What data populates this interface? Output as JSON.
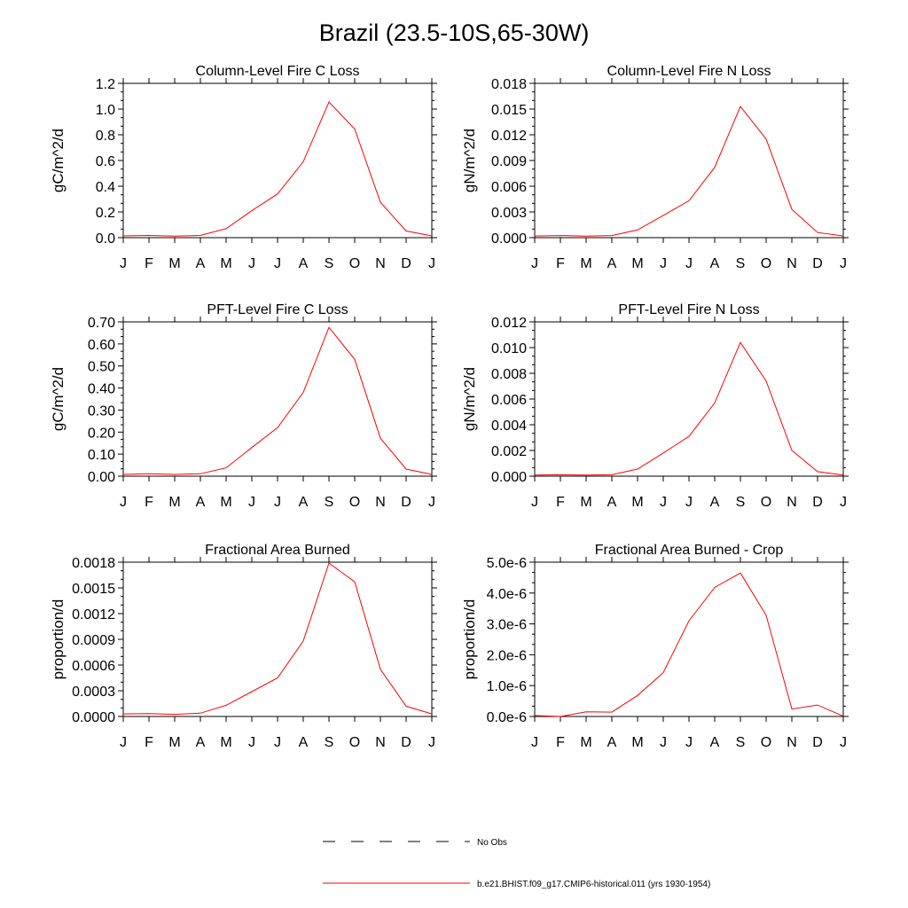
{
  "page_title": "Brazil (23.5-10S,65-30W)",
  "months": [
    "J",
    "F",
    "M",
    "A",
    "M",
    "J",
    "J",
    "A",
    "S",
    "O",
    "N",
    "D",
    "J"
  ],
  "colors": {
    "line": "#ff0000",
    "axis": "#000000",
    "obs": "#000000"
  },
  "legend": {
    "obs_label": "No Obs",
    "model_label": "b.e21.BHIST.f09_g17.CMIP6-historical.011 (yrs 1930-1954)"
  },
  "chart_data": [
    {
      "type": "line",
      "title": "Column-Level Fire C Loss",
      "ylabel": "gC/m^2/d",
      "ylim": [
        0,
        1.2
      ],
      "yticks": [
        "0.0",
        "0.2",
        "0.4",
        "0.6",
        "0.8",
        "1.0",
        "1.2"
      ],
      "categories": [
        "J",
        "F",
        "M",
        "A",
        "M",
        "J",
        "J",
        "A",
        "S",
        "O",
        "N",
        "D",
        "J"
      ],
      "values": [
        0.014,
        0.017,
        0.012,
        0.017,
        0.07,
        0.21,
        0.34,
        0.59,
        1.055,
        0.845,
        0.275,
        0.052,
        0.014
      ]
    },
    {
      "type": "line",
      "title": "Column-Level Fire N Loss",
      "ylabel": "gN/m^2/d",
      "ylim": [
        0,
        0.018
      ],
      "yticks": [
        "0.000",
        "0.003",
        "0.006",
        "0.009",
        "0.012",
        "0.015",
        "0.018"
      ],
      "categories": [
        "J",
        "F",
        "M",
        "A",
        "M",
        "J",
        "J",
        "A",
        "S",
        "O",
        "N",
        "D",
        "J"
      ],
      "values": [
        0.0002,
        0.00025,
        0.00018,
        0.00025,
        0.0009,
        0.0026,
        0.0043,
        0.0082,
        0.0153,
        0.0115,
        0.0033,
        0.0006,
        0.0002
      ]
    },
    {
      "type": "line",
      "title": "PFT-Level Fire C Loss",
      "ylabel": "gC/m^2/d",
      "ylim": [
        0,
        0.7
      ],
      "yticks": [
        "0.00",
        "0.10",
        "0.20",
        "0.30",
        "0.40",
        "0.50",
        "0.60",
        "0.70"
      ],
      "categories": [
        "J",
        "F",
        "M",
        "A",
        "M",
        "J",
        "J",
        "A",
        "S",
        "O",
        "N",
        "D",
        "J"
      ],
      "values": [
        0.008,
        0.011,
        0.008,
        0.011,
        0.038,
        0.13,
        0.22,
        0.38,
        0.675,
        0.53,
        0.172,
        0.032,
        0.008
      ]
    },
    {
      "type": "line",
      "title": "PFT-Level Fire N Loss",
      "ylabel": "gN/m^2/d",
      "ylim": [
        0,
        0.012
      ],
      "yticks": [
        "0.000",
        "0.002",
        "0.004",
        "0.006",
        "0.008",
        "0.010",
        "0.012"
      ],
      "categories": [
        "J",
        "F",
        "M",
        "A",
        "M",
        "J",
        "J",
        "A",
        "S",
        "O",
        "N",
        "D",
        "J"
      ],
      "values": [
        9e-05,
        0.00011,
        8e-05,
        0.00011,
        0.00055,
        0.0018,
        0.0031,
        0.0057,
        0.0104,
        0.0074,
        0.002,
        0.00035,
        9e-05
      ]
    },
    {
      "type": "line",
      "title": "Fractional Area Burned",
      "ylabel": "proportion/d",
      "ylim": [
        0,
        0.0018
      ],
      "yticks": [
        "0.0000",
        "0.0003",
        "0.0006",
        "0.0009",
        "0.0012",
        "0.0015",
        "0.0018"
      ],
      "categories": [
        "J",
        "F",
        "M",
        "A",
        "M",
        "J",
        "J",
        "A",
        "S",
        "O",
        "N",
        "D",
        "J"
      ],
      "values": [
        3e-05,
        3.3e-05,
        2.5e-05,
        3.8e-05,
        0.00013,
        0.00029,
        0.00045,
        0.00088,
        0.00179,
        0.00157,
        0.00055,
        0.00012,
        3e-05
      ]
    },
    {
      "type": "line",
      "title": "Fractional Area Burned - Crop",
      "ylabel": "proportion/d",
      "ylim": [
        0,
        5e-06
      ],
      "yticks": [
        "0.0e-6",
        "1.0e-6",
        "2.0e-6",
        "3.0e-6",
        "4.0e-6",
        "5.0e-6"
      ],
      "categories": [
        "J",
        "F",
        "M",
        "A",
        "M",
        "J",
        "J",
        "A",
        "S",
        "O",
        "N",
        "D",
        "J"
      ],
      "values": [
        3e-08,
        0.0,
        1.5e-07,
        1.4e-07,
        6.8e-07,
        1.42e-06,
        3.1e-06,
        4.18e-06,
        4.65e-06,
        3.28e-06,
        2.4e-07,
        3.7e-07,
        1e-08
      ]
    }
  ]
}
